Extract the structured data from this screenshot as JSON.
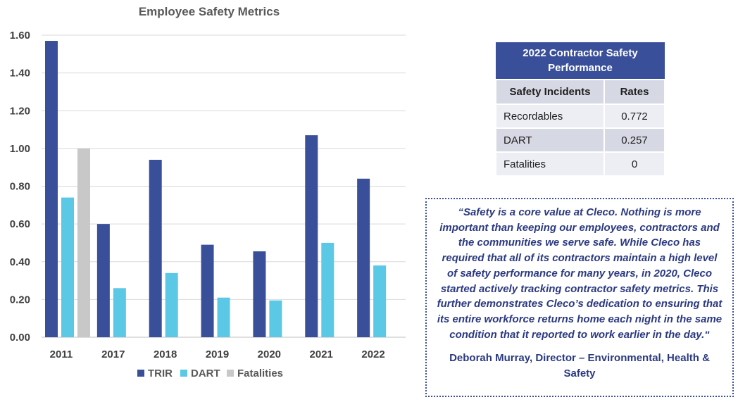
{
  "chart_data": {
    "type": "bar",
    "title": "Employee Safety Metrics",
    "categories": [
      "2011",
      "2017",
      "2018",
      "2019",
      "2020",
      "2021",
      "2022"
    ],
    "series": [
      {
        "name": "TRIR",
        "color": "#3a4f9a",
        "values": [
          1.57,
          0.6,
          0.94,
          0.49,
          0.455,
          1.07,
          0.84
        ]
      },
      {
        "name": "DART",
        "color": "#5bc8e6",
        "values": [
          0.74,
          0.26,
          0.34,
          0.21,
          0.195,
          0.5,
          0.38
        ]
      },
      {
        "name": "Fatalities",
        "color": "#c8c8c8",
        "values": [
          1.0,
          0,
          0,
          0,
          0,
          0,
          0
        ]
      }
    ],
    "ylim": [
      0,
      1.6
    ],
    "yticks": [
      "0.00",
      "0.20",
      "0.40",
      "0.60",
      "0.80",
      "1.00",
      "1.20",
      "1.40",
      "1.60"
    ],
    "xlabel": "",
    "ylabel": "",
    "grid": true,
    "legend": "bottom"
  },
  "contractor_table": {
    "title": "2022 Contractor Safety Performance",
    "headers": [
      "Safety Incidents",
      "Rates"
    ],
    "rows": [
      {
        "label": "Recordables",
        "value": "0.772"
      },
      {
        "label": "DART",
        "value": "0.257"
      },
      {
        "label": "Fatalities",
        "value": "0"
      }
    ]
  },
  "quote": {
    "text": "“Safety is a core value at Cleco. Nothing is more important than keeping our employees, contractors and the communities we serve safe. While Cleco has required that all of its contractors maintain a high level of safety performance for many years, in 2020, Cleco started actively tracking contractor safety metrics.  This further demonstrates Cleco’s dedication to ensuring that its entire workforce returns home each night in the same condition that it reported to work earlier in the day.“",
    "author": "Deborah Murray, Director – Environmental, Health & Safety"
  }
}
